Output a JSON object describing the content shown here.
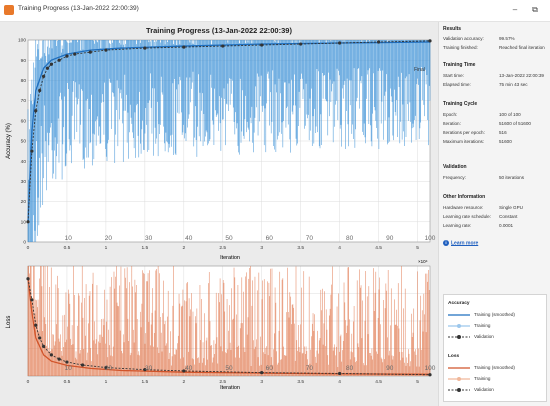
{
  "window": {
    "title": "Training Progress (13-Jan-2022 22:00:39)",
    "minimize_glyph": "–",
    "restore_glyph": "⧉"
  },
  "plot_title": "Training Progress (13-Jan-2022 22:00:39)",
  "accuracy_chart": {
    "ylabel": "Accuracy (%)",
    "xlabel": "Iteration",
    "yticks": [
      "0",
      "10",
      "20",
      "30",
      "40",
      "50",
      "60",
      "70",
      "80",
      "90",
      "100"
    ],
    "xticks": [
      "0",
      "0.5",
      "1",
      "1.5",
      "2",
      "2.5",
      "3",
      "3.5",
      "4",
      "4.5",
      "5"
    ],
    "epoch_ticks": [
      "10",
      "20",
      "30",
      "40",
      "50",
      "60",
      "70",
      "80",
      "90",
      "100"
    ],
    "exponent": "×10⁴",
    "final_label": "Final"
  },
  "loss_chart": {
    "ylabel": "Loss",
    "xlabel": "Iteration",
    "xticks": [
      "0",
      "0.5",
      "1",
      "1.5",
      "2",
      "2.5",
      "3",
      "3.5",
      "4",
      "4.5",
      "5"
    ],
    "epoch_ticks": [
      "10",
      "20",
      "30",
      "40",
      "50",
      "60",
      "70",
      "80",
      "90",
      "100"
    ]
  },
  "chart_data": [
    {
      "type": "line",
      "title": "Training Progress (13-Jan-2022 22:00:39)",
      "xlabel": "Iteration",
      "ylabel": "Accuracy (%)",
      "xlim": [
        0,
        51600
      ],
      "ylim": [
        0,
        100
      ],
      "series": [
        {
          "name": "Training (smoothed)",
          "x": [
            0,
            500,
            1000,
            2000,
            3000,
            5000,
            8000,
            12000,
            20000,
            30000,
            40000,
            51600
          ],
          "values": [
            10,
            55,
            75,
            86,
            90,
            93,
            95,
            96,
            97,
            98,
            98.5,
            99
          ]
        },
        {
          "name": "Validation",
          "x": [
            0,
            500,
            1000,
            1500,
            2000,
            2500,
            3000,
            4000,
            5000,
            6000,
            8000,
            10000,
            15000,
            20000,
            25000,
            30000,
            35000,
            40000,
            45000,
            51600
          ],
          "values": [
            10,
            45,
            65,
            75,
            82,
            86,
            88,
            90,
            92,
            93,
            94,
            95,
            96,
            96.5,
            97,
            97.5,
            98,
            98.5,
            99,
            99.57
          ]
        }
      ]
    },
    {
      "type": "line",
      "xlabel": "Iteration",
      "ylabel": "Loss",
      "xlim": [
        0,
        51600
      ],
      "series": [
        {
          "name": "Training (smoothed)",
          "x": [
            0,
            500,
            1000,
            2000,
            3000,
            5000,
            8000,
            12000,
            20000,
            30000,
            40000,
            51600
          ],
          "values": [
            2.3,
            1.5,
            0.9,
            0.5,
            0.35,
            0.25,
            0.18,
            0.13,
            0.09,
            0.07,
            0.05,
            0.04
          ]
        },
        {
          "name": "Validation",
          "x": [
            0,
            500,
            1000,
            1500,
            2000,
            3000,
            4000,
            5000,
            7000,
            10000,
            15000,
            20000,
            30000,
            40000,
            51600
          ],
          "values": [
            2.3,
            1.8,
            1.2,
            0.9,
            0.7,
            0.5,
            0.4,
            0.33,
            0.26,
            0.2,
            0.15,
            0.12,
            0.08,
            0.06,
            0.03
          ]
        }
      ]
    }
  ],
  "panel": {
    "results_title": "Results",
    "val_acc_label": "Validation accuracy:",
    "val_acc_value": "99.57%",
    "finished_label": "Training finished:",
    "finished_value": "Reached final iteration",
    "time_title": "Training Time",
    "start_label": "Start time:",
    "start_value": "13-Jan-2022 22:00:39",
    "elapsed_label": "Elapsed time:",
    "elapsed_value": "75 min 43 sec",
    "cycle_title": "Training Cycle",
    "epoch_label": "Epoch:",
    "epoch_value": "100 of 100",
    "iter_label": "Iteration:",
    "iter_value": "51600 of 51600",
    "ipe_label": "Iterations per epoch:",
    "ipe_value": "516",
    "maxiter_label": "Maximum iterations:",
    "maxiter_value": "51600",
    "validation_title": "Validation",
    "freq_label": "Frequency:",
    "freq_value": "50 iterations",
    "other_title": "Other Information",
    "hw_label": "Hardware resource:",
    "hw_value": "Single GPU",
    "lrs_label": "Learning rate schedule:",
    "lrs_value": "Constant",
    "lr_label": "Learning rate:",
    "lr_value": "0.0001",
    "learn_more": "Learn more"
  },
  "legend": {
    "accuracy_title": "Accuracy",
    "acc_items": [
      "Training (smoothed)",
      "Training",
      "Validation"
    ],
    "loss_title": "Loss",
    "loss_items": [
      "Training (smoothed)",
      "Training",
      "Validation"
    ]
  },
  "colors": {
    "acc_raw": "#3a8fd6",
    "acc_smooth": "#1f6fbf",
    "loss_raw": "#e0744a",
    "loss_smooth": "#d1542a",
    "validation": "#333333"
  }
}
